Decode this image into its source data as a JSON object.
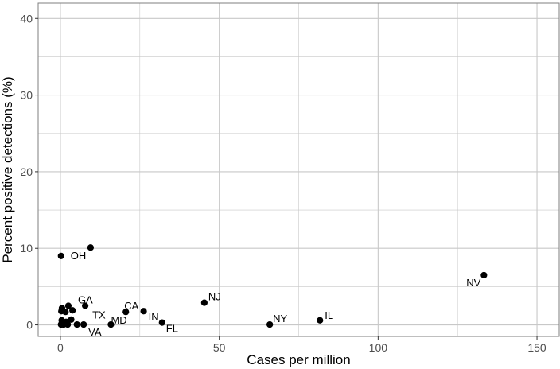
{
  "chart_data": {
    "type": "scatter",
    "title": "",
    "xlabel": "Cases per million",
    "ylabel": "Percent positive detections (%)",
    "xlim": [
      -7,
      157
    ],
    "ylim": [
      -1.5,
      42
    ],
    "xticks": [
      0,
      50,
      100,
      150
    ],
    "yticks": [
      0,
      10,
      20,
      30,
      40
    ],
    "grid": true,
    "legend": "none",
    "colors": {
      "point": "#000000",
      "grid": "#c8c8c8",
      "frame": "#7f7f7f",
      "background": "#ffffff"
    },
    "points": [
      {
        "x": 0.2,
        "y": 9.0,
        "label": "OH"
      },
      {
        "x": 9.5,
        "y": 10.1,
        "label": ""
      },
      {
        "x": 0.5,
        "y": 2.2,
        "label": ""
      },
      {
        "x": 2.5,
        "y": 2.5,
        "label": "GA"
      },
      {
        "x": 0.3,
        "y": 1.8,
        "label": ""
      },
      {
        "x": 1.6,
        "y": 1.7,
        "label": ""
      },
      {
        "x": 3.8,
        "y": 1.9,
        "label": ""
      },
      {
        "x": 7.8,
        "y": 2.5,
        "label": "TX"
      },
      {
        "x": 0.4,
        "y": 0.6,
        "label": ""
      },
      {
        "x": 1.8,
        "y": 0.4,
        "label": ""
      },
      {
        "x": 3.4,
        "y": 0.7,
        "label": ""
      },
      {
        "x": 0.2,
        "y": 0.05,
        "label": ""
      },
      {
        "x": 1.0,
        "y": 0.05,
        "label": ""
      },
      {
        "x": 2.3,
        "y": 0.05,
        "label": ""
      },
      {
        "x": 5.2,
        "y": 0.05,
        "label": ""
      },
      {
        "x": 7.3,
        "y": 0.05,
        "label": "VA"
      },
      {
        "x": 15.9,
        "y": 0.05,
        "label": "MD"
      },
      {
        "x": 20.6,
        "y": 1.7,
        "label": "CA"
      },
      {
        "x": 26.2,
        "y": 1.8,
        "label": "IN"
      },
      {
        "x": 32.0,
        "y": 0.3,
        "label": "FL"
      },
      {
        "x": 45.3,
        "y": 2.9,
        "label": "NJ"
      },
      {
        "x": 65.9,
        "y": 0.05,
        "label": "NY"
      },
      {
        "x": 81.7,
        "y": 0.6,
        "label": "IL"
      },
      {
        "x": 133.3,
        "y": 6.5,
        "label": "NV"
      }
    ]
  }
}
